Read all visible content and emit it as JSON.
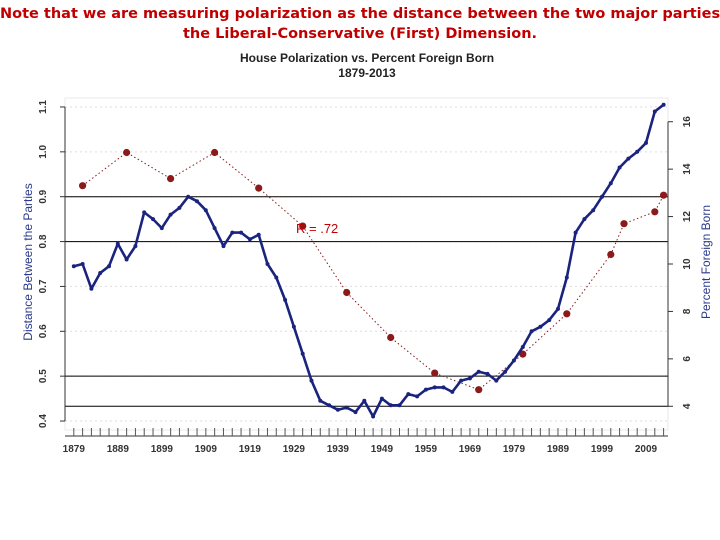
{
  "note": {
    "line1": "Note that we are measuring polarization as the distance between the two major parties on",
    "line2": "the Liberal-Conservative (First) Dimension."
  },
  "colors": {
    "note": "#c00000",
    "polarization_line": "#1a237e",
    "foreign_born_line": "#8b1a1a",
    "annotation": "#c00000"
  },
  "chart_data": {
    "type": "line",
    "title": "House Polarization vs. Percent Foreign Born",
    "subtitle": "1879-2013",
    "xlabel": "",
    "ylabel": "Distance Between the Parties",
    "y2label": "Percent Foreign Born",
    "annotation": "R = .72",
    "xlim": [
      1877,
      2014
    ],
    "ylim": [
      0.38,
      1.12
    ],
    "y2lim": [
      3,
      17
    ],
    "x_ticks": [
      1879,
      1889,
      1899,
      1909,
      1919,
      1929,
      1939,
      1949,
      1959,
      1969,
      1979,
      1989,
      1999,
      2009
    ],
    "y_ticks": [
      0.4,
      0.5,
      0.6,
      0.7,
      0.8,
      0.9,
      1.0,
      1.1
    ],
    "y_tick_labels": [
      "0.4",
      "0.5",
      "0.6",
      "0.7",
      "0.8",
      "0.9",
      "1.0",
      "1.1"
    ],
    "y2_ticks": [
      4,
      6,
      8,
      10,
      12,
      14,
      16
    ],
    "y2_tick_labels": [
      "4",
      "6",
      "8",
      "10",
      "12",
      "14",
      "16"
    ],
    "grid": "horizontal lines at 0.5, 0.8, 0.9 (left) and 4 (right)",
    "series": [
      {
        "name": "House Polarization",
        "axis": "left",
        "x": [
          1879,
          1881,
          1883,
          1885,
          1887,
          1889,
          1891,
          1893,
          1895,
          1897,
          1899,
          1901,
          1903,
          1905,
          1907,
          1909,
          1911,
          1913,
          1915,
          1917,
          1919,
          1921,
          1923,
          1925,
          1927,
          1929,
          1931,
          1933,
          1935,
          1937,
          1939,
          1941,
          1943,
          1945,
          1947,
          1949,
          1951,
          1953,
          1955,
          1957,
          1959,
          1961,
          1963,
          1965,
          1967,
          1969,
          1971,
          1973,
          1975,
          1977,
          1979,
          1981,
          1983,
          1985,
          1987,
          1989,
          1991,
          1993,
          1995,
          1997,
          1999,
          2001,
          2003,
          2005,
          2007,
          2009,
          2011,
          2013
        ],
        "values": [
          0.745,
          0.75,
          0.695,
          0.73,
          0.745,
          0.795,
          0.76,
          0.79,
          0.865,
          0.85,
          0.83,
          0.86,
          0.875,
          0.9,
          0.89,
          0.87,
          0.83,
          0.79,
          0.82,
          0.82,
          0.805,
          0.815,
          0.75,
          0.72,
          0.67,
          0.61,
          0.55,
          0.49,
          0.445,
          0.435,
          0.425,
          0.43,
          0.42,
          0.445,
          0.41,
          0.45,
          0.435,
          0.435,
          0.46,
          0.455,
          0.47,
          0.475,
          0.475,
          0.465,
          0.49,
          0.495,
          0.51,
          0.505,
          0.49,
          0.51,
          0.535,
          0.565,
          0.6,
          0.61,
          0.625,
          0.65,
          0.72,
          0.82,
          0.85,
          0.87,
          0.9,
          0.93,
          0.965,
          0.985,
          1.0,
          1.02,
          1.09,
          1.105
        ]
      },
      {
        "name": "Percent Foreign Born",
        "axis": "right",
        "x": [
          1881,
          1891,
          1901,
          1911,
          1921,
          1931,
          1941,
          1951,
          1961,
          1971,
          1981,
          1991,
          2001,
          2004,
          2011,
          2013
        ],
        "values": [
          13.3,
          14.7,
          13.6,
          14.7,
          13.2,
          11.6,
          8.8,
          6.9,
          5.4,
          4.7,
          6.2,
          7.9,
          10.4,
          11.7,
          12.2,
          12.9
        ]
      }
    ]
  }
}
